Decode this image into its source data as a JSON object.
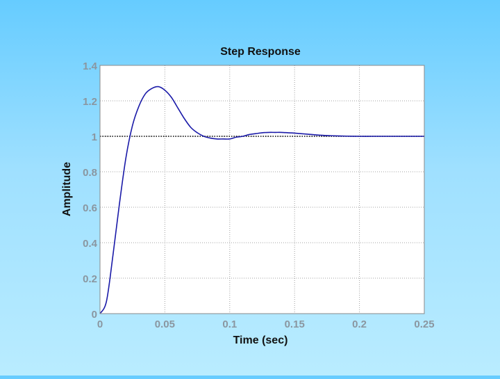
{
  "chart_data": {
    "type": "line",
    "title": "Step Response",
    "xlabel": "Time (sec)",
    "ylabel": "Amplitude",
    "xlim": [
      0,
      0.25
    ],
    "ylim": [
      0,
      1.4
    ],
    "xticks": [
      0,
      0.05,
      0.1,
      0.15,
      0.2,
      0.25
    ],
    "xtick_labels": [
      "0",
      "0.05",
      "0.1",
      "0.15",
      "0.2",
      "0.25"
    ],
    "yticks": [
      0,
      0.2,
      0.4,
      0.6,
      0.8,
      1,
      1.2,
      1.4
    ],
    "ytick_labels": [
      "0",
      "0.2",
      "0.4",
      "0.6",
      "0.8",
      "1",
      "1.2",
      "1.4"
    ],
    "grid": true,
    "reference_line": {
      "y": 1,
      "style": "dotted",
      "color": "#000000"
    },
    "series": [
      {
        "color": "#1a1aa8",
        "x": [
          0,
          0.005,
          0.01,
          0.015,
          0.02,
          0.025,
          0.03,
          0.035,
          0.04,
          0.045,
          0.05,
          0.055,
          0.06,
          0.065,
          0.07,
          0.075,
          0.08,
          0.085,
          0.09,
          0.095,
          0.1,
          0.105,
          0.11,
          0.115,
          0.12,
          0.125,
          0.13,
          0.135,
          0.14,
          0.145,
          0.15,
          0.16,
          0.17,
          0.18,
          0.19,
          0.2,
          0.21,
          0.22,
          0.23,
          0.24,
          0.25
        ],
        "y": [
          0,
          0.07,
          0.33,
          0.62,
          0.88,
          1.06,
          1.17,
          1.24,
          1.27,
          1.28,
          1.26,
          1.22,
          1.16,
          1.1,
          1.05,
          1.02,
          1.0,
          0.99,
          0.985,
          0.985,
          0.985,
          0.995,
          1.0,
          1.01,
          1.015,
          1.02,
          1.022,
          1.022,
          1.022,
          1.02,
          1.018,
          1.012,
          1.006,
          1.003,
          1.001,
          1.0,
          1.0,
          1.0,
          1.0,
          1.0,
          1.0
        ]
      }
    ],
    "colors": {
      "plot_background": "#ffffff",
      "grid": "#a0a0a0",
      "frame": "#888888"
    }
  }
}
